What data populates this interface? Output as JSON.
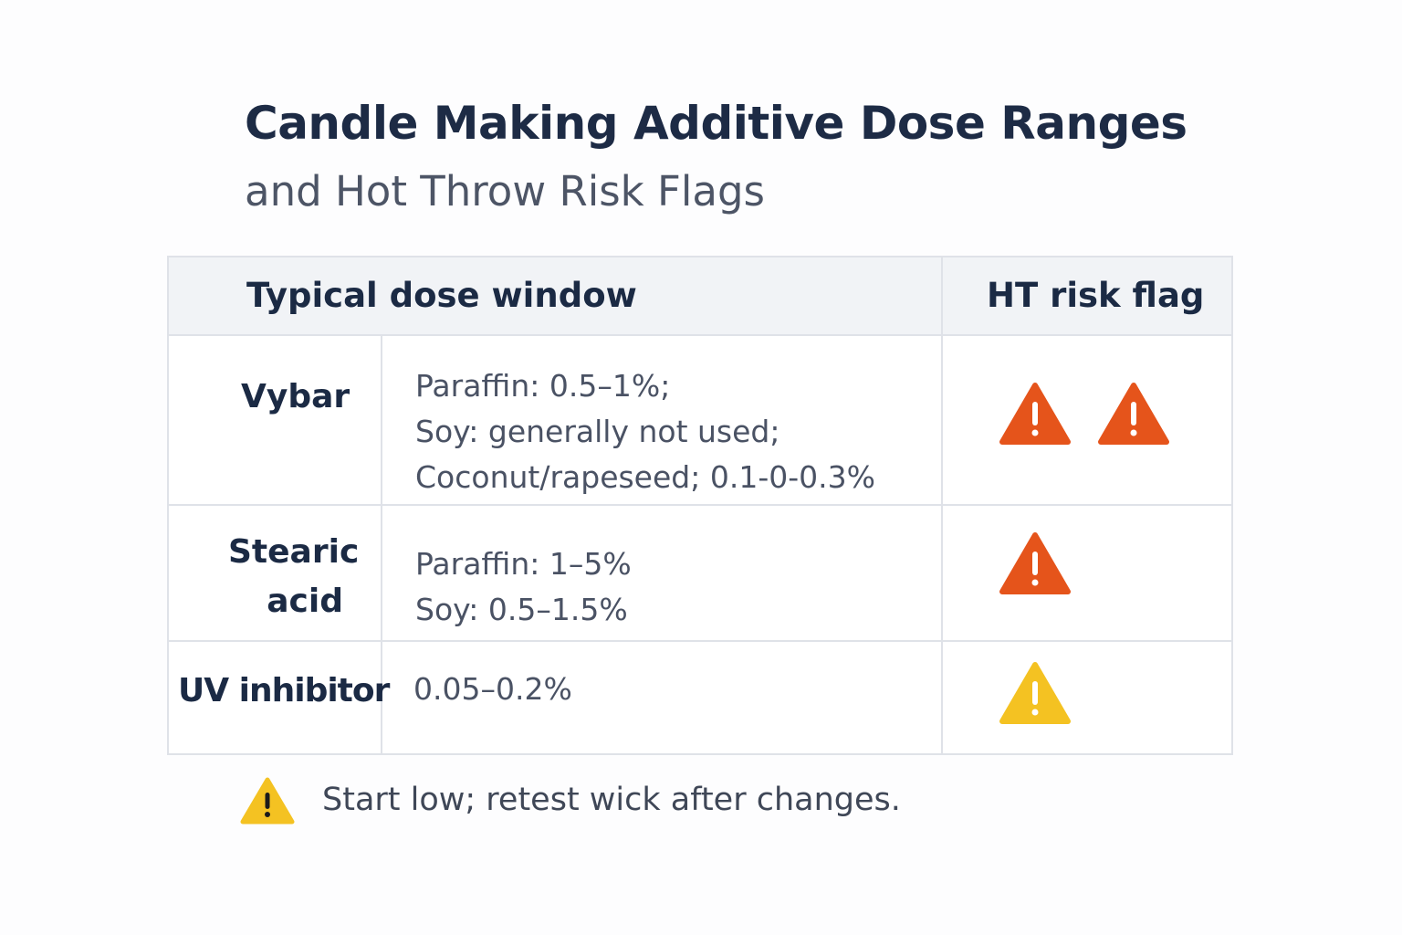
{
  "title": "Candle Making Additive Dose Ranges",
  "subtitle": "and Hot Throw Risk Flags",
  "table": {
    "headers": {
      "dose": "Typical dose window",
      "risk": "HT risk flag"
    },
    "rows": [
      {
        "name": "Vybar",
        "dose_lines": [
          "Paraffin: 0.5–1%;",
          "Soy: generally not used;",
          "Coconut/rapeseed; 0.1-0-0.3%"
        ],
        "risk_flags": 2,
        "risk_color": "#e5541b"
      },
      {
        "name_line1": "Stearic",
        "name_line2": "acid",
        "dose_lines": [
          "Paraffin: 1–5%",
          "Soy: 0.5–1.5%"
        ],
        "risk_flags": 1,
        "risk_color": "#e5541b"
      },
      {
        "name": "UV inhibitor",
        "dose_lines": [
          "0.05–0.2%"
        ],
        "risk_flags": 1,
        "risk_color": "#f4c222"
      }
    ]
  },
  "note": {
    "icon": "warning-triangle-icon",
    "text": "Start low; retest wick after changes.",
    "color": "#f4c222"
  }
}
